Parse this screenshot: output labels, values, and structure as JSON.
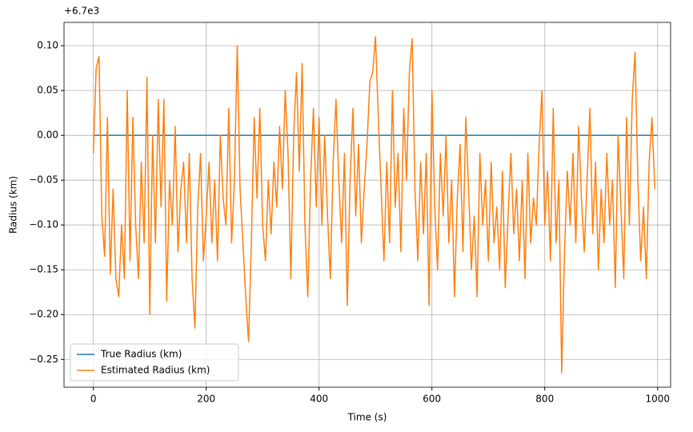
{
  "chart_data": {
    "type": "line",
    "xlabel": "Time (s)",
    "ylabel": "Radius (km)",
    "offset_text": "+6.7e3",
    "xlim": [
      -52,
      1023
    ],
    "ylim": [
      -0.281,
      0.126
    ],
    "xticks": [
      0,
      200,
      400,
      600,
      800,
      1000
    ],
    "yticks": [
      {
        "value": -0.25,
        "label": "−0.25"
      },
      {
        "value": -0.2,
        "label": "−0.20"
      },
      {
        "value": -0.15,
        "label": "−0.15"
      },
      {
        "value": -0.1,
        "label": "−0.10"
      },
      {
        "value": -0.05,
        "label": "−0.05"
      },
      {
        "value": 0,
        "label": "0.00"
      },
      {
        "value": 0.05,
        "label": "0.05"
      },
      {
        "value": 0.1,
        "label": "0.10"
      }
    ],
    "grid": true,
    "legend": "lower left",
    "series": [
      {
        "name": "True Radius (km)",
        "color": "#1f77b4",
        "x": [
          0,
          999
        ],
        "values": [
          0,
          0
        ]
      },
      {
        "name": "Estimated Radius (km)",
        "color": "#ff7f0e",
        "x": [
          0,
          5,
          10,
          15,
          20,
          25,
          30,
          35,
          40,
          45,
          50,
          55,
          60,
          65,
          70,
          75,
          80,
          85,
          90,
          95,
          100,
          105,
          110,
          115,
          120,
          125,
          130,
          135,
          140,
          145,
          150,
          155,
          160,
          165,
          170,
          175,
          180,
          185,
          190,
          195,
          200,
          205,
          210,
          215,
          220,
          225,
          230,
          235,
          240,
          245,
          250,
          255,
          260,
          265,
          270,
          275,
          280,
          285,
          290,
          295,
          300,
          305,
          310,
          315,
          320,
          325,
          330,
          335,
          340,
          345,
          350,
          355,
          360,
          365,
          370,
          375,
          380,
          385,
          390,
          395,
          400,
          405,
          410,
          415,
          420,
          425,
          430,
          435,
          440,
          445,
          450,
          455,
          460,
          465,
          470,
          475,
          480,
          485,
          490,
          495,
          500,
          505,
          510,
          515,
          520,
          525,
          530,
          535,
          540,
          545,
          550,
          555,
          560,
          565,
          570,
          575,
          580,
          585,
          590,
          595,
          600,
          605,
          610,
          615,
          620,
          625,
          630,
          635,
          640,
          645,
          650,
          655,
          660,
          665,
          670,
          675,
          680,
          685,
          690,
          695,
          700,
          705,
          710,
          715,
          720,
          725,
          730,
          735,
          740,
          745,
          750,
          755,
          760,
          765,
          770,
          775,
          780,
          785,
          790,
          795,
          800,
          805,
          810,
          815,
          820,
          825,
          830,
          835,
          840,
          845,
          850,
          855,
          860,
          865,
          870,
          875,
          880,
          885,
          890,
          895,
          900,
          905,
          910,
          915,
          920,
          925,
          930,
          935,
          940,
          945,
          950,
          955,
          960,
          965,
          970,
          975,
          980,
          985,
          990,
          995
        ],
        "values": [
          -0.02,
          0.075,
          0.088,
          -0.09,
          -0.135,
          0.02,
          -0.155,
          -0.06,
          -0.16,
          -0.18,
          -0.1,
          -0.16,
          0.05,
          -0.14,
          0.02,
          -0.1,
          -0.16,
          -0.03,
          -0.12,
          0.065,
          -0.2,
          0.0,
          -0.12,
          0.04,
          -0.08,
          0.04,
          -0.185,
          -0.05,
          -0.1,
          0.01,
          -0.13,
          -0.06,
          -0.03,
          -0.12,
          -0.02,
          -0.16,
          -0.215,
          -0.08,
          -0.02,
          -0.14,
          -0.09,
          -0.03,
          -0.12,
          -0.05,
          -0.14,
          0.0,
          -0.07,
          -0.1,
          0.03,
          -0.12,
          -0.05,
          0.1,
          -0.06,
          -0.12,
          -0.18,
          -0.23,
          -0.12,
          0.02,
          -0.07,
          0.03,
          -0.1,
          -0.14,
          -0.05,
          -0.11,
          -0.03,
          -0.08,
          0.01,
          -0.06,
          0.05,
          -0.02,
          -0.16,
          0.0,
          0.07,
          -0.04,
          0.08,
          -0.1,
          -0.18,
          -0.05,
          0.03,
          -0.08,
          0.02,
          -0.1,
          0.0,
          -0.09,
          -0.16,
          -0.03,
          0.04,
          -0.05,
          -0.12,
          -0.02,
          -0.19,
          -0.05,
          0.03,
          -0.09,
          -0.01,
          -0.12,
          -0.06,
          -0.01,
          0.06,
          0.07,
          0.11,
          0.02,
          -0.06,
          -0.14,
          -0.03,
          -0.12,
          0.05,
          -0.08,
          -0.02,
          -0.13,
          0.03,
          -0.05,
          0.07,
          0.108,
          -0.06,
          -0.14,
          -0.03,
          -0.11,
          -0.02,
          -0.19,
          0.05,
          -0.08,
          -0.15,
          -0.02,
          -0.09,
          0.0,
          -0.12,
          -0.05,
          -0.18,
          -0.07,
          -0.01,
          -0.13,
          0.02,
          -0.06,
          -0.15,
          -0.09,
          -0.18,
          -0.02,
          -0.1,
          -0.05,
          -0.14,
          -0.03,
          -0.12,
          -0.08,
          -0.15,
          -0.04,
          -0.17,
          -0.09,
          -0.02,
          -0.11,
          -0.06,
          -0.14,
          -0.05,
          -0.16,
          -0.02,
          -0.12,
          -0.07,
          -0.1,
          -0.01,
          0.05,
          -0.1,
          -0.04,
          -0.14,
          0.03,
          -0.12,
          -0.05,
          -0.265,
          -0.13,
          -0.04,
          -0.1,
          -0.02,
          -0.12,
          0.01,
          -0.07,
          -0.13,
          -0.05,
          0.03,
          -0.11,
          -0.03,
          -0.15,
          -0.06,
          -0.12,
          -0.02,
          -0.1,
          -0.05,
          -0.17,
          0.0,
          -0.08,
          -0.16,
          0.02,
          -0.1,
          0.04,
          0.093,
          -0.05,
          -0.14,
          -0.08,
          -0.16,
          -0.03,
          0.02,
          -0.06
        ]
      }
    ]
  }
}
